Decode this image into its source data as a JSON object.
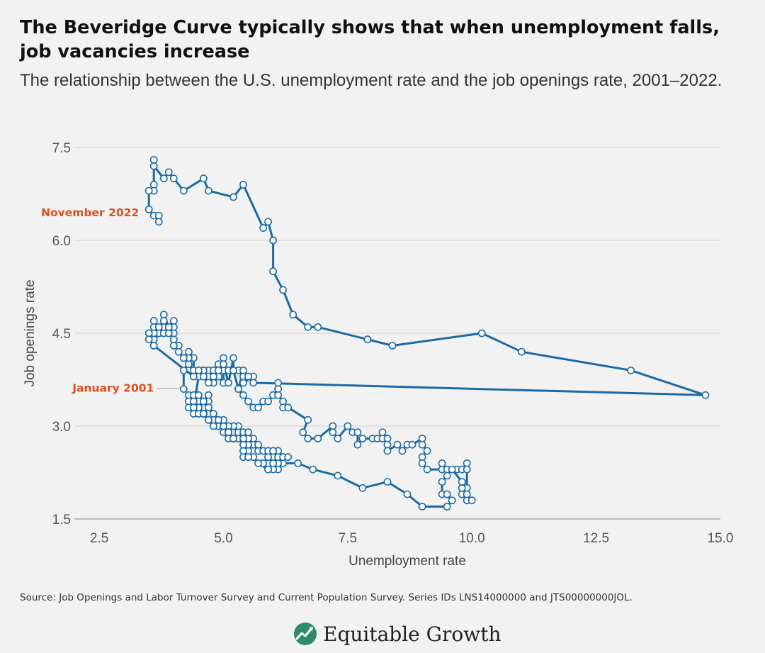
{
  "chart_data": {
    "type": "line",
    "title": "The Beveridge Curve typically shows that when unemployment falls, job vacancies increase",
    "subtitle": "The relationship between the U.S. unemployment rate and the job openings rate, 2001–2022.",
    "xlabel": "Unemployment rate",
    "ylabel": "Job openings rate",
    "xlim": [
      2.0,
      15.0
    ],
    "ylim": [
      1.5,
      7.5
    ],
    "xticks": [
      "2.5",
      "5.0",
      "7.5",
      "10.0",
      "12.5",
      "15.0"
    ],
    "yticks": [
      "1.5",
      "3.0",
      "4.5",
      "6.0",
      "7.5"
    ],
    "grid": "horizontal",
    "annotations": {
      "start": {
        "text": "January 2001",
        "x": 4.2,
        "y": 3.6
      },
      "end": {
        "text": "November 2022",
        "x": 3.7,
        "y": 6.3
      }
    },
    "series": [
      {
        "name": "",
        "points": [
          [
            4.2,
            3.6
          ],
          [
            4.2,
            3.9
          ],
          [
            4.3,
            4.0
          ],
          [
            4.4,
            3.9
          ],
          [
            4.4,
            4.1
          ],
          [
            4.3,
            4.2
          ],
          [
            4.3,
            4.1
          ],
          [
            4.2,
            4.1
          ],
          [
            4.1,
            4.2
          ],
          [
            4.1,
            4.3
          ],
          [
            4.0,
            4.3
          ],
          [
            4.0,
            4.4
          ],
          [
            4.0,
            4.5
          ],
          [
            3.9,
            4.5
          ],
          [
            4.0,
            4.6
          ],
          [
            4.0,
            4.7
          ],
          [
            3.9,
            4.6
          ],
          [
            3.8,
            4.8
          ],
          [
            3.8,
            4.6
          ],
          [
            3.7,
            4.6
          ],
          [
            3.7,
            4.5
          ],
          [
            3.6,
            4.4
          ],
          [
            3.6,
            4.5
          ],
          [
            3.6,
            4.6
          ],
          [
            3.6,
            4.7
          ],
          [
            3.7,
            4.5
          ],
          [
            3.8,
            4.5
          ],
          [
            3.8,
            4.6
          ],
          [
            3.9,
            4.5
          ],
          [
            3.9,
            4.6
          ],
          [
            3.8,
            4.7
          ],
          [
            3.7,
            4.6
          ],
          [
            3.6,
            4.5
          ],
          [
            3.5,
            4.5
          ],
          [
            3.5,
            4.4
          ],
          [
            3.6,
            4.3
          ],
          [
            4.4,
            3.8
          ],
          [
            4.5,
            3.8
          ],
          [
            4.6,
            3.8
          ],
          [
            4.7,
            3.8
          ],
          [
            4.8,
            3.9
          ],
          [
            4.9,
            3.9
          ],
          [
            5.0,
            3.9
          ],
          [
            5.1,
            3.9
          ],
          [
            5.2,
            3.9
          ],
          [
            5.3,
            3.9
          ],
          [
            5.4,
            3.8
          ],
          [
            5.5,
            3.8
          ],
          [
            5.6,
            3.8
          ],
          [
            5.4,
            3.7
          ],
          [
            5.3,
            3.6
          ],
          [
            5.4,
            3.5
          ],
          [
            5.5,
            3.4
          ],
          [
            5.6,
            3.3
          ],
          [
            5.7,
            3.3
          ],
          [
            5.8,
            3.4
          ],
          [
            5.9,
            3.4
          ],
          [
            6.0,
            3.5
          ],
          [
            6.1,
            3.6
          ],
          [
            6.1,
            3.7
          ],
          [
            6.1,
            3.5
          ],
          [
            6.2,
            3.4
          ],
          [
            6.2,
            3.3
          ],
          [
            6.3,
            3.3
          ],
          [
            6.7,
            3.1
          ],
          [
            6.6,
            2.9
          ],
          [
            6.7,
            2.8
          ],
          [
            6.9,
            2.8
          ],
          [
            7.2,
            3.0
          ],
          [
            7.2,
            2.9
          ],
          [
            7.3,
            2.8
          ],
          [
            7.5,
            3.0
          ],
          [
            7.6,
            2.9
          ],
          [
            7.7,
            2.9
          ],
          [
            7.7,
            2.7
          ],
          [
            7.8,
            2.8
          ],
          [
            8.0,
            2.8
          ],
          [
            8.1,
            2.8
          ],
          [
            8.2,
            2.8
          ],
          [
            8.2,
            2.9
          ],
          [
            8.3,
            2.8
          ],
          [
            8.3,
            2.7
          ],
          [
            8.3,
            2.6
          ],
          [
            8.5,
            2.7
          ],
          [
            8.6,
            2.6
          ],
          [
            8.7,
            2.7
          ],
          [
            8.8,
            2.7
          ],
          [
            9.0,
            2.8
          ],
          [
            9.0,
            2.7
          ],
          [
            9.1,
            2.6
          ],
          [
            9.0,
            2.5
          ],
          [
            9.0,
            2.4
          ],
          [
            9.1,
            2.3
          ],
          [
            9.4,
            2.3
          ],
          [
            9.4,
            2.4
          ],
          [
            9.5,
            2.3
          ],
          [
            9.7,
            2.3
          ],
          [
            9.8,
            2.3
          ],
          [
            9.9,
            2.4
          ],
          [
            9.9,
            2.3
          ],
          [
            9.9,
            2.0
          ],
          [
            9.8,
            1.9
          ],
          [
            9.9,
            1.8
          ],
          [
            10.0,
            1.8
          ],
          [
            9.9,
            1.9
          ],
          [
            9.8,
            2.0
          ],
          [
            9.8,
            2.1
          ],
          [
            9.6,
            2.3
          ],
          [
            9.5,
            2.2
          ],
          [
            9.4,
            2.1
          ],
          [
            9.4,
            1.9
          ],
          [
            9.5,
            1.9
          ],
          [
            9.6,
            1.8
          ],
          [
            9.5,
            1.7
          ],
          [
            9.0,
            1.7
          ],
          [
            8.7,
            1.9
          ],
          [
            8.3,
            2.1
          ],
          [
            7.8,
            2.0
          ],
          [
            7.3,
            2.2
          ],
          [
            6.8,
            2.3
          ],
          [
            6.5,
            2.4
          ],
          [
            6.2,
            2.4
          ],
          [
            6.1,
            2.3
          ],
          [
            6.0,
            2.3
          ],
          [
            5.9,
            2.3
          ],
          [
            5.8,
            2.4
          ],
          [
            5.9,
            2.5
          ],
          [
            6.0,
            2.5
          ],
          [
            6.1,
            2.6
          ],
          [
            6.2,
            2.5
          ],
          [
            6.1,
            2.4
          ],
          [
            6.0,
            2.4
          ],
          [
            5.9,
            2.5
          ],
          [
            5.8,
            2.6
          ],
          [
            5.7,
            2.6
          ],
          [
            5.6,
            2.7
          ],
          [
            5.5,
            2.6
          ],
          [
            5.4,
            2.5
          ],
          [
            5.4,
            2.6
          ],
          [
            5.5,
            2.7
          ],
          [
            5.6,
            2.8
          ],
          [
            5.7,
            2.7
          ],
          [
            5.8,
            2.6
          ],
          [
            5.9,
            2.6
          ],
          [
            6.0,
            2.6
          ],
          [
            6.1,
            2.5
          ],
          [
            6.2,
            2.5
          ],
          [
            6.3,
            2.5
          ],
          [
            5.9,
            2.3
          ],
          [
            5.7,
            2.4
          ],
          [
            5.6,
            2.5
          ],
          [
            5.5,
            2.5
          ],
          [
            5.4,
            2.7
          ],
          [
            5.3,
            2.8
          ],
          [
            5.2,
            2.8
          ],
          [
            5.1,
            2.8
          ],
          [
            5.0,
            2.9
          ],
          [
            5.0,
            3.0
          ],
          [
            5.1,
            2.9
          ],
          [
            5.2,
            3.0
          ],
          [
            5.3,
            2.9
          ],
          [
            5.4,
            2.9
          ],
          [
            5.5,
            2.8
          ],
          [
            5.5,
            2.9
          ],
          [
            5.4,
            2.8
          ],
          [
            5.3,
            3.0
          ],
          [
            5.2,
            3.0
          ],
          [
            5.1,
            3.0
          ],
          [
            5.1,
            2.9
          ],
          [
            4.9,
            3.0
          ],
          [
            4.9,
            3.1
          ],
          [
            4.8,
            3.1
          ],
          [
            4.7,
            3.1
          ],
          [
            4.6,
            3.2
          ],
          [
            4.7,
            3.3
          ],
          [
            4.7,
            3.4
          ],
          [
            4.6,
            3.4
          ],
          [
            4.7,
            3.5
          ],
          [
            4.6,
            3.3
          ],
          [
            4.5,
            3.4
          ],
          [
            4.4,
            3.4
          ],
          [
            4.3,
            3.4
          ],
          [
            4.3,
            3.3
          ],
          [
            4.4,
            3.2
          ],
          [
            4.5,
            3.2
          ],
          [
            4.6,
            3.2
          ],
          [
            4.6,
            3.3
          ],
          [
            4.5,
            3.3
          ],
          [
            4.4,
            3.3
          ],
          [
            4.3,
            3.5
          ],
          [
            4.4,
            3.5
          ],
          [
            4.5,
            3.4
          ],
          [
            4.5,
            3.3
          ],
          [
            4.6,
            3.2
          ],
          [
            4.7,
            3.1
          ],
          [
            4.8,
            3.0
          ],
          [
            5.0,
            3.0
          ],
          [
            5.1,
            2.9
          ],
          [
            5.2,
            2.8
          ],
          [
            5.0,
            3.0
          ],
          [
            5.0,
            3.1
          ],
          [
            4.9,
            3.1
          ],
          [
            4.8,
            3.2
          ],
          [
            4.7,
            3.3
          ],
          [
            4.6,
            3.4
          ],
          [
            4.5,
            3.5
          ],
          [
            4.4,
            3.4
          ],
          [
            4.4,
            3.3
          ],
          [
            4.5,
            3.8
          ],
          [
            4.6,
            3.9
          ],
          [
            4.7,
            3.9
          ],
          [
            4.8,
            3.9
          ],
          [
            4.9,
            4.0
          ],
          [
            5.0,
            4.0
          ],
          [
            5.0,
            4.1
          ],
          [
            5.0,
            3.7
          ],
          [
            4.9,
            3.8
          ],
          [
            4.8,
            3.7
          ],
          [
            4.7,
            3.8
          ],
          [
            4.6,
            3.9
          ],
          [
            4.5,
            3.9
          ],
          [
            4.4,
            3.8
          ],
          [
            4.6,
            3.8
          ],
          [
            4.7,
            3.7
          ],
          [
            4.8,
            3.8
          ],
          [
            4.9,
            3.9
          ],
          [
            5.0,
            4.0
          ],
          [
            5.1,
            3.7
          ],
          [
            5.2,
            4.1
          ],
          [
            5.2,
            3.9
          ],
          [
            5.3,
            3.6
          ],
          [
            5.4,
            3.9
          ],
          [
            5.5,
            3.8
          ],
          [
            5.6,
            3.7
          ],
          [
            14.7,
            3.5
          ],
          [
            13.2,
            3.9
          ],
          [
            11.0,
            4.2
          ],
          [
            10.2,
            4.5
          ],
          [
            8.4,
            4.3
          ],
          [
            7.9,
            4.4
          ],
          [
            6.9,
            4.6
          ],
          [
            6.7,
            4.6
          ],
          [
            6.4,
            4.8
          ],
          [
            6.2,
            5.2
          ],
          [
            6.0,
            5.5
          ],
          [
            6.0,
            6.0
          ],
          [
            5.9,
            6.3
          ],
          [
            5.8,
            6.2
          ],
          [
            5.4,
            6.9
          ],
          [
            5.2,
            6.7
          ],
          [
            4.7,
            6.8
          ],
          [
            4.6,
            7.0
          ],
          [
            4.2,
            6.8
          ],
          [
            4.0,
            7.0
          ],
          [
            3.9,
            7.1
          ],
          [
            3.8,
            7.0
          ],
          [
            3.6,
            7.2
          ],
          [
            3.6,
            7.3
          ],
          [
            3.6,
            6.9
          ],
          [
            3.6,
            6.8
          ],
          [
            3.5,
            6.8
          ],
          [
            3.5,
            6.5
          ],
          [
            3.6,
            6.4
          ],
          [
            3.7,
            6.4
          ],
          [
            3.7,
            6.3
          ]
        ]
      }
    ]
  },
  "footer": {
    "source": "Source: Job Openings and Labor Turnover Survey and Current Population Survey. Series IDs LNS14000000 and JTS00000000JOL.",
    "brand": "Equitable Growth",
    "brand_icon": "rising-line-leaf-icon"
  },
  "colors": {
    "line": "#1b6aa5",
    "marker_fill": "#ffffff",
    "annotation": "#e0501f",
    "grid": "#d0d0d0",
    "background": "#f2f2f2"
  }
}
